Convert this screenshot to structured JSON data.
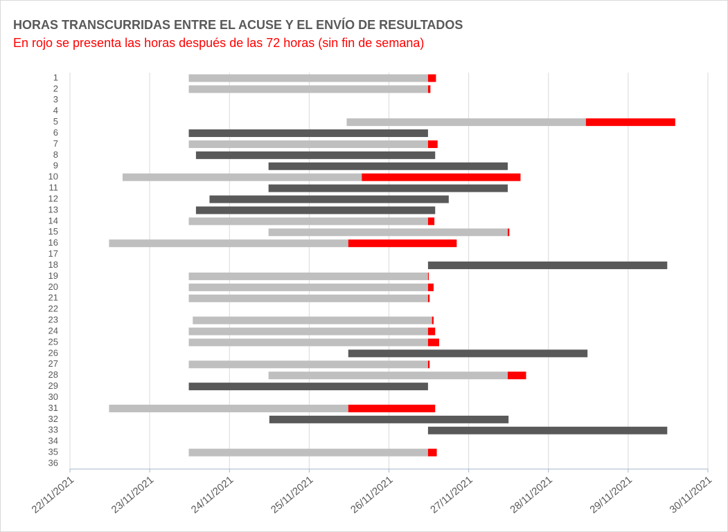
{
  "chart_data": {
    "type": "gantt",
    "title": "HORAS TRANSCURRIDAS ENTRE EL ACUSE Y EL ENVÍO DE RESULTADOS",
    "subtitle": "En rojo se presenta las horas después de las 72 horas (sin fin de semana)",
    "categories": [
      "1",
      "2",
      "3",
      "4",
      "5",
      "6",
      "7",
      "8",
      "9",
      "10",
      "11",
      "12",
      "13",
      "14",
      "15",
      "16",
      "17",
      "18",
      "19",
      "20",
      "21",
      "22",
      "23",
      "24",
      "25",
      "26",
      "27",
      "28",
      "29",
      "30",
      "31",
      "32",
      "33",
      "34",
      "35",
      "36"
    ],
    "start": [
      44523.49,
      44523.49,
      null,
      null,
      44525.47,
      44523.49,
      44523.49,
      44523.58,
      44524.49,
      44522.66,
      44524.49,
      44523.75,
      44523.58,
      44523.49,
      44524.49,
      44522.49,
      null,
      44526.49,
      44523.49,
      44523.49,
      44523.49,
      null,
      44523.54,
      44523.49,
      44523.49,
      44525.49,
      44523.49,
      44524.49,
      44523.49,
      null,
      44522.49,
      44524.5,
      44526.49,
      null,
      44523.49,
      null
    ],
    "series": [
      {
        "colors": [
          "#bfbfbf",
          "#bfbfbf",
          null,
          null,
          "#bfbfbf",
          "#595959",
          "#bfbfbf",
          "#595959",
          "#595959",
          "#bfbfbf",
          "#595959",
          "#595959",
          "#595959",
          "#bfbfbf",
          "#bfbfbf",
          "#bfbfbf",
          null,
          "#595959",
          "#bfbfbf",
          "#bfbfbf",
          "#bfbfbf",
          null,
          "#bfbfbf",
          "#bfbfbf",
          "#bfbfbf",
          "#595959",
          "#bfbfbf",
          "#bfbfbf",
          "#595959",
          null,
          "#bfbfbf",
          "#595959",
          "#595959",
          null,
          "#bfbfbf",
          null
        ],
        "values": [
          3,
          3,
          null,
          null,
          3,
          3,
          3,
          3,
          3,
          3,
          3,
          3,
          3,
          3,
          3,
          3,
          null,
          3,
          3,
          3,
          3,
          null,
          3,
          3,
          3,
          3,
          3,
          3,
          3,
          null,
          3,
          3,
          3,
          null,
          3,
          null
        ]
      },
      {
        "color": "#ff0000",
        "values": [
          0.1,
          0.03,
          null,
          null,
          1.12,
          null,
          0.12,
          null,
          null,
          1.99,
          null,
          null,
          null,
          0.08,
          0.02,
          1.36,
          null,
          null,
          0.01,
          0.07,
          0.02,
          null,
          0.02,
          0.09,
          0.14,
          null,
          0.02,
          0.23,
          null,
          null,
          1.09,
          null,
          null,
          null,
          0.11,
          null
        ]
      }
    ],
    "xlim": [
      44522,
      44530
    ],
    "xticks": [
      {
        "value": 44522,
        "label": "22/11/2021"
      },
      {
        "value": 44523,
        "label": "23/11/2021"
      },
      {
        "value": 44524,
        "label": "24/11/2021"
      },
      {
        "value": 44525,
        "label": "25/11/2021"
      },
      {
        "value": 44526,
        "label": "26/11/2021"
      },
      {
        "value": 44527,
        "label": "27/11/2021"
      },
      {
        "value": 44528,
        "label": "28/11/2021"
      },
      {
        "value": 44529,
        "label": "29/11/2021"
      },
      {
        "value": 44530,
        "label": "30/11/2021"
      }
    ],
    "grid": true
  }
}
